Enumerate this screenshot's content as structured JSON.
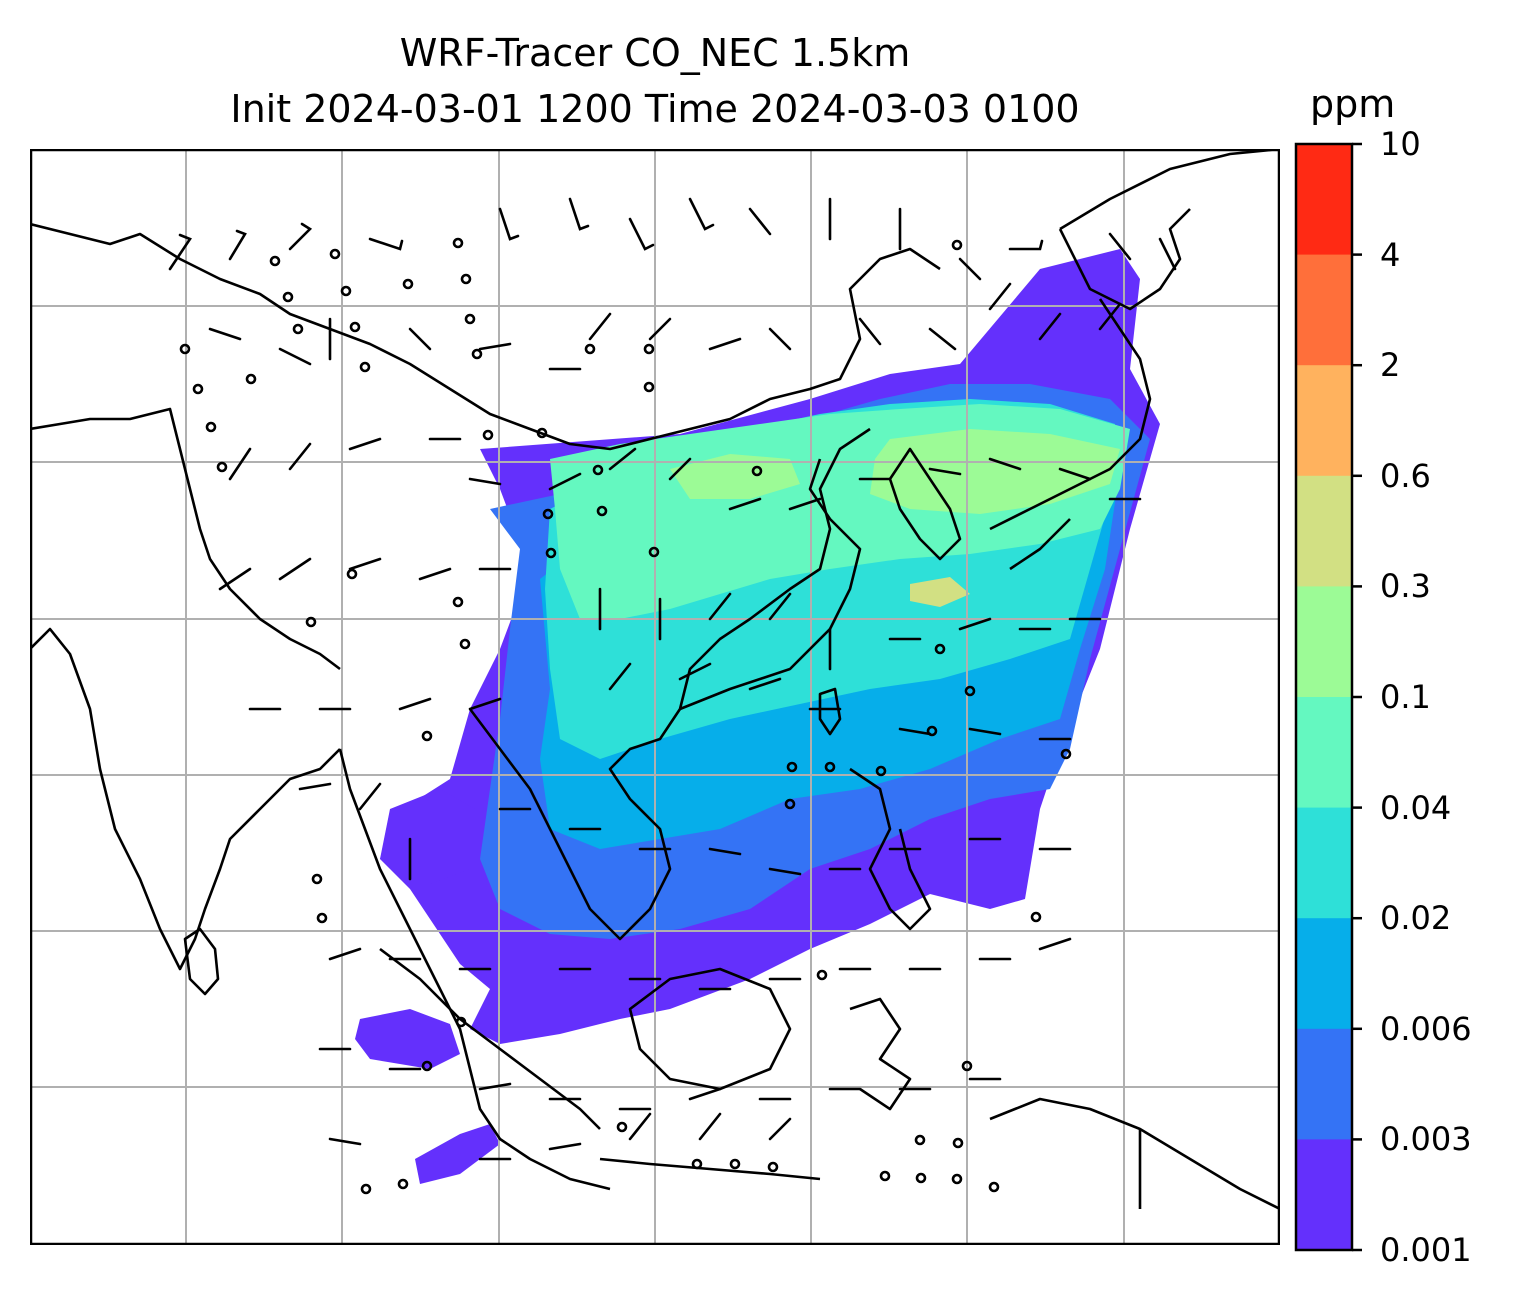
{
  "title": {
    "line1": "WRF-Tracer CO_NEC 1.5km",
    "line2": "Init 2024-03-01 1200 Time 2024-03-03 0100"
  },
  "colorbar": {
    "unit": "ppm",
    "labels": [
      "10",
      "4",
      "2",
      "0.6",
      "0.3",
      "0.1",
      "0.04",
      "0.02",
      "0.006",
      "0.003",
      "0.001"
    ],
    "colors": [
      "#ff2a14",
      "#ff6f3a",
      "#ffb25e",
      "#d2e083",
      "#9cfb96",
      "#64f8c0",
      "#2ee0d8",
      "#06aeea",
      "#3473f5",
      "#6430fc"
    ]
  },
  "map": {
    "gridlines": true,
    "wind_barbs": true
  }
}
